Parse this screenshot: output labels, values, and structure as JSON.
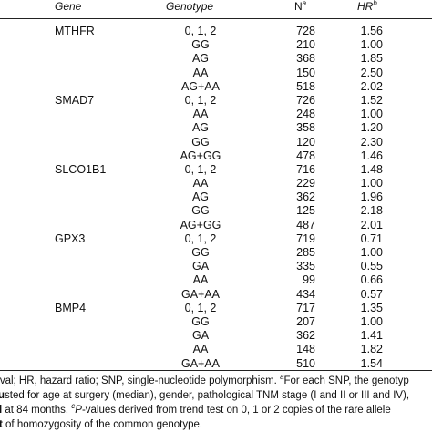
{
  "header": {
    "gene": "Gene",
    "genotype": "Genotype",
    "n": "N",
    "n_sup": "a",
    "hr": "HR",
    "hr_sup": "b"
  },
  "rows": [
    {
      "gene": "MTHFR",
      "genotype": "0, 1, 2",
      "n": "728",
      "hr": "1.56"
    },
    {
      "gene": "",
      "genotype": "GG",
      "n": "210",
      "hr": "1.00"
    },
    {
      "gene": "",
      "genotype": "AG",
      "n": "368",
      "hr": "1.85"
    },
    {
      "gene": "",
      "genotype": "AA",
      "n": "150",
      "hr": "2.50"
    },
    {
      "gene": "",
      "genotype": "AG+AA",
      "n": "518",
      "hr": "2.02"
    },
    {
      "gene": "SMAD7",
      "genotype": "0, 1, 2",
      "n": "726",
      "hr": "1.52"
    },
    {
      "gene": "",
      "genotype": "AA",
      "n": "248",
      "hr": "1.00"
    },
    {
      "gene": "",
      "genotype": "AG",
      "n": "358",
      "hr": "1.20"
    },
    {
      "gene": "",
      "genotype": "GG",
      "n": "120",
      "hr": "2.30"
    },
    {
      "gene": "",
      "genotype": "AG+GG",
      "n": "478",
      "hr": "1.46"
    },
    {
      "gene": "SLCO1B1",
      "genotype": "0, 1, 2",
      "n": "716",
      "hr": "1.48"
    },
    {
      "gene": "",
      "genotype": "AA",
      "n": "229",
      "hr": "1.00"
    },
    {
      "gene": "",
      "genotype": "AG",
      "n": "362",
      "hr": "1.96"
    },
    {
      "gene": "",
      "genotype": "GG",
      "n": "125",
      "hr": "2.18"
    },
    {
      "gene": "",
      "genotype": "AG+GG",
      "n": "487",
      "hr": "2.01"
    },
    {
      "gene": "GPX3",
      "genotype": "0, 1, 2",
      "n": "719",
      "hr": "0.71"
    },
    {
      "gene": "",
      "genotype": "GG",
      "n": "285",
      "hr": "1.00"
    },
    {
      "gene": "",
      "genotype": "GA",
      "n": "335",
      "hr": "0.55"
    },
    {
      "gene": "",
      "genotype": "AA",
      "n": "99",
      "hr": "0.66"
    },
    {
      "gene": "",
      "genotype": "GA+AA",
      "n": "434",
      "hr": "0.57"
    },
    {
      "gene": "BMP4",
      "genotype": "0, 1, 2",
      "n": "717",
      "hr": "1.35"
    },
    {
      "gene": "",
      "genotype": "GG",
      "n": "207",
      "hr": "1.00"
    },
    {
      "gene": "",
      "genotype": "GA",
      "n": "362",
      "hr": "1.41"
    },
    {
      "gene": "",
      "genotype": "AA",
      "n": "148",
      "hr": "1.82"
    },
    {
      "gene": "",
      "genotype": "GA+AA",
      "n": "510",
      "hr": "1.54"
    }
  ],
  "footnote": {
    "line1_a": "rval; HR, hazard ratio; SNP, single-nucleotide polymorphism. ",
    "line1_sup": "a",
    "line1_b": "For each SNP, the genotyp",
    "line2_bold": "u",
    "line2": "sted for age at surgery (median), gender, pathological TNM stage (I and II or III and IV),",
    "line3_bold": "l",
    "line3_a": " at 84 months. ",
    "line3_sup": "c",
    "line3_ital": "P",
    "line3_b": "-values derived from trend test on 0, 1 or 2 copies of the rare allele",
    "line4_bold": "t",
    "line4": " of homozygosity of the common genotype."
  }
}
